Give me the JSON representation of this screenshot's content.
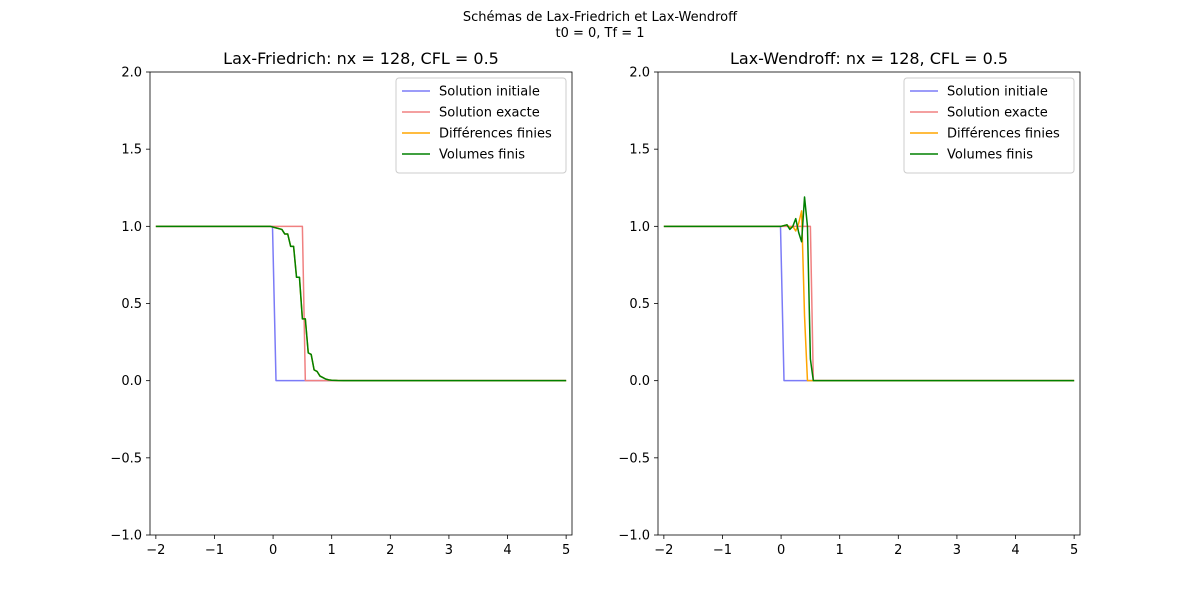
{
  "figure": {
    "suptitle_line1": "Schémas de Lax-Friedrich et Lax-Wendroff",
    "suptitle_line2": "t0 = 0, Tf = 1"
  },
  "colors": {
    "initial": "#7b7bf7",
    "exact": "#f08080",
    "finite_differences": "#ffa500",
    "finite_volumes": "#008000"
  },
  "chart_data": [
    {
      "type": "line",
      "title": "Lax-Friedrich: nx = 128, CFL = 0.5",
      "xlabel": "",
      "ylabel": "",
      "xlim": [
        -2.1,
        5.1
      ],
      "ylim": [
        -1.0,
        2.0
      ],
      "xticks": [
        -2,
        -1,
        0,
        1,
        2,
        3,
        4,
        5
      ],
      "xtick_labels": [
        "−2",
        "−1",
        "0",
        "1",
        "2",
        "3",
        "4",
        "5"
      ],
      "yticks": [
        -1.0,
        -0.5,
        0.0,
        0.5,
        1.0,
        1.5,
        2.0
      ],
      "ytick_labels": [
        "−1.0",
        "−0.5",
        "0.0",
        "0.5",
        "1.0",
        "1.5",
        "2.0"
      ],
      "grid": false,
      "legend_position": "top-right",
      "series": [
        {
          "name": "Solution initiale",
          "color_key": "initial",
          "x": [
            -2,
            -0.01,
            0.05,
            5
          ],
          "y": [
            1,
            1,
            0,
            0
          ]
        },
        {
          "name": "Solution exacte",
          "color_key": "exact",
          "x": [
            -2,
            0.5,
            0.55,
            5
          ],
          "y": [
            1,
            1,
            0,
            0
          ]
        },
        {
          "name": "Différences finies",
          "color_key": "finite_differences",
          "x": [
            -2,
            -0.05,
            0.05,
            0.15,
            0.2,
            0.25,
            0.3,
            0.35,
            0.4,
            0.45,
            0.5,
            0.55,
            0.6,
            0.65,
            0.7,
            0.75,
            0.8,
            0.85,
            0.9,
            0.95,
            1.0,
            1.1,
            1.2,
            5
          ],
          "y": [
            1,
            1,
            0.99,
            0.98,
            0.95,
            0.95,
            0.87,
            0.87,
            0.67,
            0.67,
            0.4,
            0.4,
            0.18,
            0.17,
            0.07,
            0.06,
            0.03,
            0.02,
            0.01,
            0.005,
            0.003,
            0.001,
            0,
            0
          ]
        },
        {
          "name": "Volumes finis",
          "color_key": "finite_volumes",
          "x": [
            -2,
            -0.05,
            0.05,
            0.15,
            0.2,
            0.25,
            0.3,
            0.35,
            0.4,
            0.45,
            0.5,
            0.55,
            0.6,
            0.65,
            0.7,
            0.75,
            0.8,
            0.85,
            0.9,
            0.95,
            1.0,
            1.1,
            1.2,
            5
          ],
          "y": [
            1,
            1,
            0.99,
            0.98,
            0.95,
            0.95,
            0.87,
            0.87,
            0.67,
            0.67,
            0.4,
            0.4,
            0.18,
            0.17,
            0.07,
            0.06,
            0.03,
            0.02,
            0.01,
            0.005,
            0.003,
            0.001,
            0,
            0
          ]
        }
      ]
    },
    {
      "type": "line",
      "title": "Lax-Wendroff: nx = 128, CFL = 0.5",
      "xlabel": "",
      "ylabel": "",
      "xlim": [
        -2.1,
        5.1
      ],
      "ylim": [
        -1.0,
        2.0
      ],
      "xticks": [
        -2,
        -1,
        0,
        1,
        2,
        3,
        4,
        5
      ],
      "xtick_labels": [
        "−2",
        "−1",
        "0",
        "1",
        "2",
        "3",
        "4",
        "5"
      ],
      "yticks": [
        -1.0,
        -0.5,
        0.0,
        0.5,
        1.0,
        1.5,
        2.0
      ],
      "ytick_labels": [
        "−1.0",
        "−0.5",
        "0.0",
        "0.5",
        "1.0",
        "1.5",
        "2.0"
      ],
      "grid": false,
      "legend_position": "top-right",
      "series": [
        {
          "name": "Solution initiale",
          "color_key": "initial",
          "x": [
            -2,
            -0.01,
            0.05,
            5
          ],
          "y": [
            1,
            1,
            0,
            0
          ]
        },
        {
          "name": "Solution exacte",
          "color_key": "exact",
          "x": [
            -2,
            0.5,
            0.55,
            5
          ],
          "y": [
            1,
            1,
            0,
            0
          ]
        },
        {
          "name": "Différences finies",
          "color_key": "finite_differences",
          "x": [
            -2,
            0.0,
            0.1,
            0.15,
            0.2,
            0.25,
            0.3,
            0.35,
            0.4,
            0.45,
            0.5,
            5
          ],
          "y": [
            1,
            1,
            1.01,
            0.99,
            1.0,
            0.97,
            1.02,
            1.1,
            0.42,
            0.0,
            0.0,
            0
          ]
        },
        {
          "name": "Volumes finis",
          "color_key": "finite_volumes",
          "x": [
            -2,
            0.0,
            0.1,
            0.15,
            0.2,
            0.25,
            0.3,
            0.35,
            0.4,
            0.45,
            0.5,
            0.55,
            0.6,
            5
          ],
          "y": [
            1,
            1,
            1.01,
            0.98,
            1.0,
            1.05,
            0.96,
            0.9,
            1.19,
            1.0,
            0.14,
            0.0,
            0.0,
            0
          ]
        }
      ]
    }
  ]
}
